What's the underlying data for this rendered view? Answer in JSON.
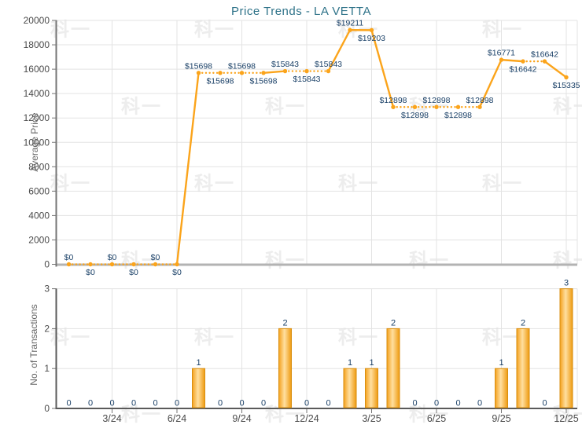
{
  "title": "Price Trends - LA VETTA",
  "watermark_text": "科一",
  "colors": {
    "line": "#FBA41B",
    "bar_gradient": [
      "#F4A11D",
      "#FFDFA0",
      "#EE9A0F"
    ],
    "bar_border": "#D98E0E",
    "value_label": "#1B4168",
    "title": "#2F7389",
    "axis_text": "#4A4A4A",
    "axis_title": "#666666",
    "grid": "#E3E3E3",
    "axis_line": "#757575",
    "baseline_top": "#B3B3B3",
    "baseline_bottom": "#5A5A5A",
    "watermark": "#EDEDED"
  },
  "chart_data": [
    {
      "type": "line",
      "title": "Price Trends - LA VETTA",
      "ylabel": "Average Price",
      "ylim": [
        0,
        20000
      ],
      "yticks": [
        0,
        2000,
        4000,
        6000,
        8000,
        10000,
        12000,
        14000,
        16000,
        18000,
        20000
      ],
      "x_months": 24,
      "x_tick_labels": [
        "3/24",
        "6/24",
        "9/24",
        "12/24",
        "3/25",
        "6/25",
        "9/25",
        "12/25"
      ],
      "x_tick_month_positions": [
        3,
        6,
        9,
        12,
        15,
        18,
        21,
        24
      ],
      "grid": true,
      "legend": "none",
      "line_style_note": "dotted between months with unchanged price, solid when price changes",
      "values": [
        0,
        0,
        0,
        0,
        0,
        0,
        15698,
        15698,
        15698,
        15698,
        15843,
        15843,
        15843,
        19211,
        19203,
        12898,
        12898,
        12898,
        12898,
        12898,
        16771,
        16642,
        16642,
        15335
      ],
      "point_labels": [
        "$0",
        "$0",
        "$0",
        "$0",
        "$0",
        "$0",
        "$15698",
        "$15698",
        "$15698",
        "$15698",
        "$15843",
        "$15843",
        "$15843",
        "$19211",
        "$19203",
        "$12898",
        "$12898",
        "$12898",
        "$12898",
        "$12898",
        "$16771",
        "$16642",
        "$16642",
        "$15335"
      ],
      "label_positions": [
        "above",
        "below",
        "above",
        "below",
        "above",
        "below",
        "above",
        "below",
        "above",
        "below",
        "above",
        "below",
        "above",
        "above",
        "below",
        "above",
        "below",
        "above",
        "below",
        "above",
        "above",
        "below",
        "above",
        "below"
      ]
    },
    {
      "type": "bar",
      "ylabel": "No. of Transactions",
      "ylim": [
        0,
        3
      ],
      "yticks": [
        0,
        1,
        2,
        3
      ],
      "x_tick_labels": [
        "3/24",
        "6/24",
        "9/24",
        "12/24",
        "3/25",
        "6/25",
        "9/25",
        "12/25"
      ],
      "x_tick_month_positions": [
        3,
        6,
        9,
        12,
        15,
        18,
        21,
        24
      ],
      "grid": true,
      "values": [
        0,
        0,
        0,
        0,
        0,
        0,
        1,
        0,
        0,
        0,
        2,
        0,
        0,
        1,
        1,
        2,
        0,
        0,
        0,
        0,
        1,
        2,
        0,
        3
      ]
    }
  ]
}
